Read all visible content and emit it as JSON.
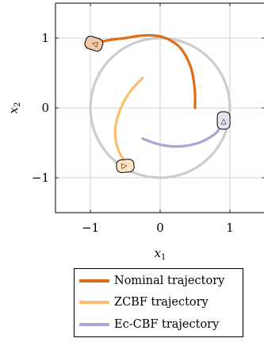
{
  "chart_data": {
    "type": "line",
    "xlabel": "x",
    "xlabel_sub": "1",
    "ylabel": "x",
    "ylabel_sub": "2",
    "xlim": [
      -1.5,
      1.5
    ],
    "ylim": [
      -1.5,
      1.5
    ],
    "xticks": [
      -1,
      0,
      1
    ],
    "xtick_labels": [
      "−1",
      "0",
      "1"
    ],
    "yticks": [
      -1,
      0,
      1
    ],
    "ytick_labels": [
      "−1",
      "0",
      "1"
    ],
    "grid": true,
    "legend_position": "below",
    "reference_circle": {
      "center": [
        0,
        0
      ],
      "radius": 1,
      "color": "#cccccc"
    },
    "series": [
      {
        "name": "Nominal trajectory",
        "color": "#e06c16",
        "x": [
          0.5,
          0.5,
          0.48,
          0.44,
          0.37,
          0.28,
          0.16,
          0.02,
          -0.14,
          -0.32,
          -0.5,
          -0.68,
          -0.84,
          -0.97
        ],
        "y": [
          0.0,
          0.2,
          0.4,
          0.58,
          0.74,
          0.87,
          0.96,
          1.02,
          1.04,
          1.03,
          1.0,
          0.98,
          0.95,
          0.91
        ]
      },
      {
        "name": "ZCBF trajectory",
        "color": "#fbbc6e",
        "x": [
          -0.25,
          -0.34,
          -0.44,
          -0.53,
          -0.6,
          -0.64,
          -0.64,
          -0.6,
          -0.53,
          -0.45
        ],
        "y": [
          0.43,
          0.34,
          0.22,
          0.07,
          -0.1,
          -0.27,
          -0.44,
          -0.6,
          -0.73,
          -0.82
        ]
      },
      {
        "name": "Ec-CBF trajectory",
        "color": "#aaa6d2",
        "x": [
          -0.25,
          -0.12,
          0.02,
          0.16,
          0.3,
          0.44,
          0.58,
          0.7,
          0.8,
          0.86,
          0.9
        ],
        "y": [
          -0.44,
          -0.49,
          -0.53,
          -0.55,
          -0.55,
          -0.53,
          -0.49,
          -0.43,
          -0.36,
          -0.28,
          -0.2
        ]
      }
    ],
    "markers": [
      {
        "series": "Nominal trajectory",
        "x": -0.95,
        "y": 0.92,
        "angle": -72,
        "glyph": "△",
        "fill": "#f5c8a8",
        "stroke": "#000000"
      },
      {
        "series": "ZCBF trajectory",
        "x": -0.5,
        "y": -0.83,
        "angle": 85,
        "glyph": "△",
        "fill": "#fde3c2",
        "stroke": "#000000"
      },
      {
        "series": "Ec-CBF trajectory",
        "x": 0.91,
        "y": -0.18,
        "angle": 0,
        "glyph": "△",
        "fill": "#e3e1f0",
        "stroke": "#000000"
      }
    ]
  }
}
